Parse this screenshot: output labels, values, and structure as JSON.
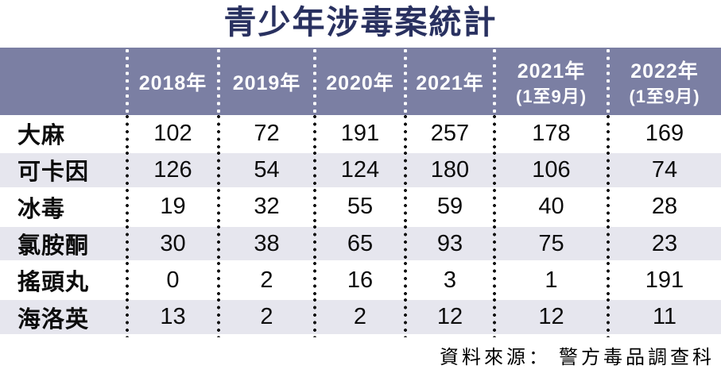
{
  "title": "青少年涉毒案統計",
  "source_line": "資料來源： 警方毒品調查科",
  "colors": {
    "title_text": "#293160",
    "header_bg": "#7b7fa3",
    "header_text": "#ffffff",
    "row_alt_bg": "#e6e6ee",
    "dot_separator_header": "#ffffff",
    "dot_separator_body": "#111111"
  },
  "table": {
    "columns": [
      {
        "line1": "2018年",
        "line2": ""
      },
      {
        "line1": "2019年",
        "line2": ""
      },
      {
        "line1": "2020年",
        "line2": ""
      },
      {
        "line1": "2021年",
        "line2": ""
      },
      {
        "line1": "2021年",
        "line2": "(1至9月)"
      },
      {
        "line1": "2022年",
        "line2": "(1至9月)"
      }
    ],
    "rows": [
      {
        "label": "大麻",
        "values": [
          "102",
          "72",
          "191",
          "257",
          "178",
          "169"
        ]
      },
      {
        "label": "可卡因",
        "values": [
          "126",
          "54",
          "124",
          "180",
          "106",
          "74"
        ]
      },
      {
        "label": "冰毒",
        "values": [
          "19",
          "32",
          "55",
          "59",
          "40",
          "28"
        ]
      },
      {
        "label": "氯胺酮",
        "values": [
          "30",
          "38",
          "65",
          "93",
          "75",
          "23"
        ]
      },
      {
        "label": "搖頭丸",
        "values": [
          "0",
          "2",
          "16",
          "3",
          "1",
          "191"
        ]
      },
      {
        "label": "海洛英",
        "values": [
          "13",
          "2",
          "2",
          "12",
          "12",
          "11"
        ]
      }
    ]
  },
  "chart_data": {
    "type": "table",
    "title": "青少年涉毒案統計",
    "categories": [
      "2018年",
      "2019年",
      "2020年",
      "2021年",
      "2021年(1至9月)",
      "2022年(1至9月)"
    ],
    "series": [
      {
        "name": "大麻",
        "values": [
          102,
          72,
          191,
          257,
          178,
          169
        ]
      },
      {
        "name": "可卡因",
        "values": [
          126,
          54,
          124,
          180,
          106,
          74
        ]
      },
      {
        "name": "冰毒",
        "values": [
          19,
          32,
          55,
          59,
          40,
          28
        ]
      },
      {
        "name": "氯胺酮",
        "values": [
          30,
          38,
          65,
          93,
          75,
          23
        ]
      },
      {
        "name": "搖頭丸",
        "values": [
          0,
          2,
          16,
          3,
          1,
          191
        ]
      },
      {
        "name": "海洛英",
        "values": [
          13,
          2,
          2,
          12,
          12,
          11
        ]
      }
    ],
    "source": "資料來源：警方毒品調查科"
  }
}
